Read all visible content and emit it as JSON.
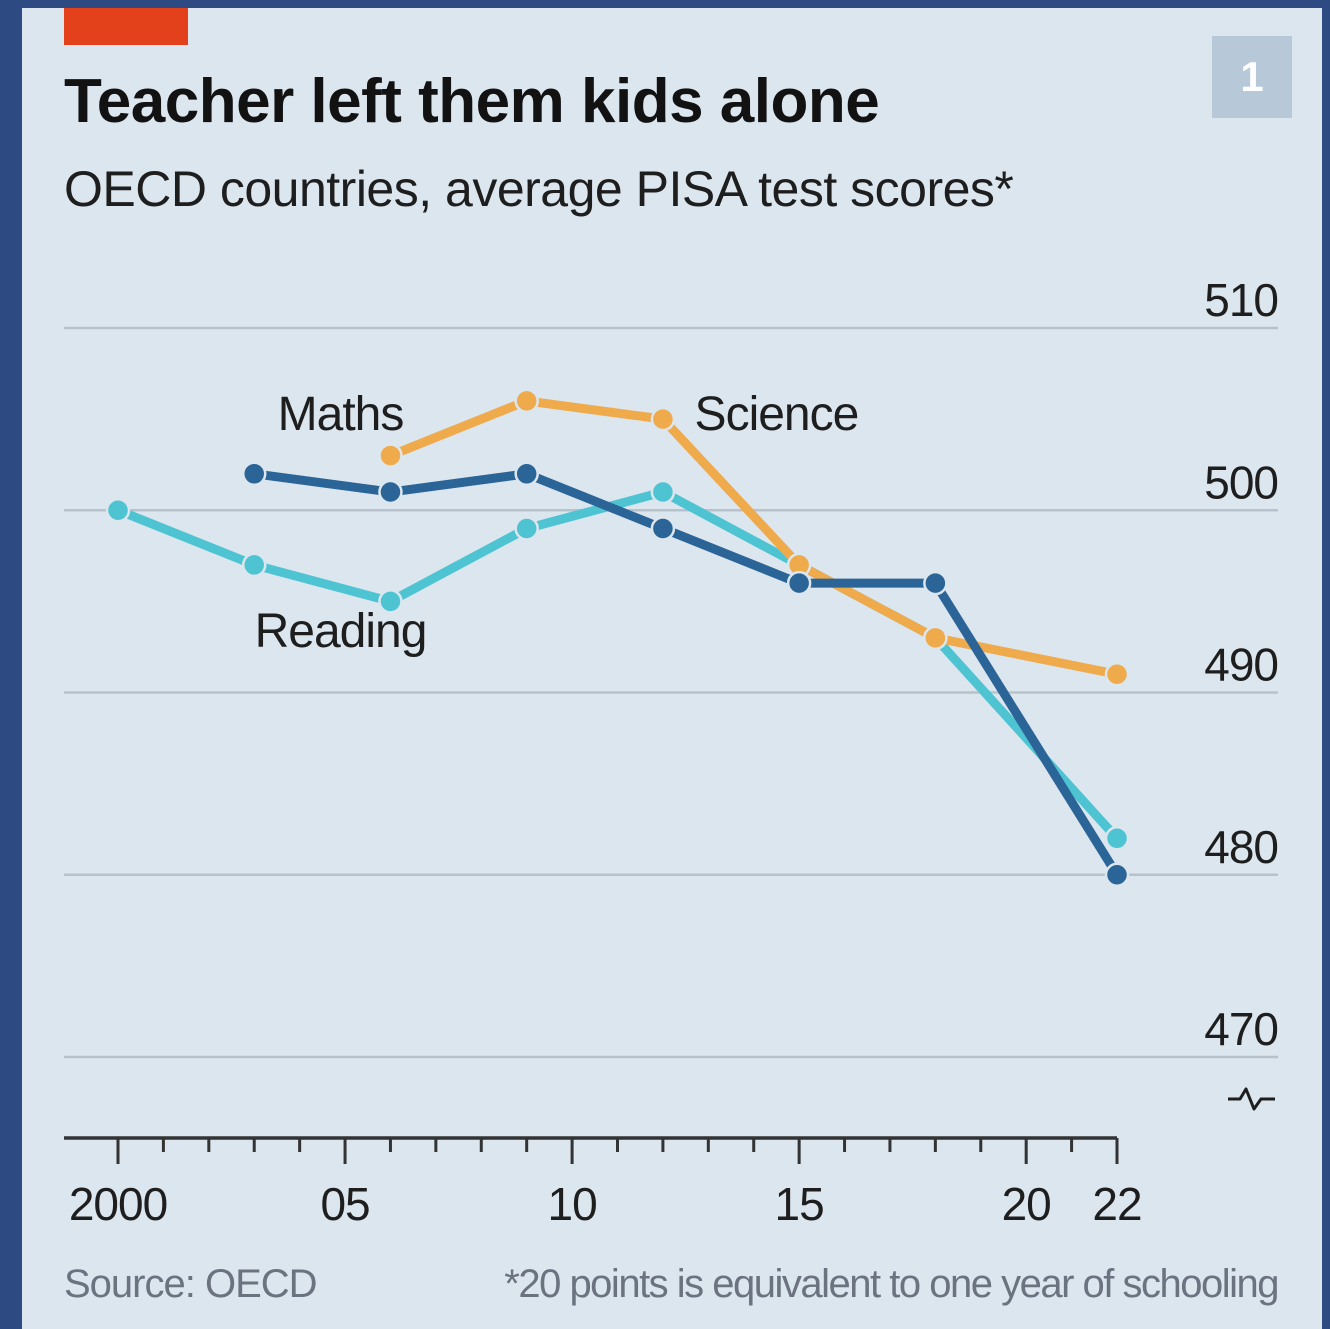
{
  "header": {
    "chart_number": "1",
    "title": "Teacher left them kids alone",
    "subtitle": "OECD countries, average PISA test scores*"
  },
  "footer": {
    "source": "Source: OECD",
    "footnote": "*20 points is equivalent to one year of schooling"
  },
  "colors": {
    "accent_red": "#e3411c",
    "maths": "#2b6496",
    "reading": "#4ec4d2",
    "science": "#efaa4c",
    "grid": "#b8c2cc",
    "axis": "#333333"
  },
  "chart_data": {
    "type": "line",
    "title": "Teacher left them kids alone",
    "subtitle": "OECD countries, average PISA test scores*",
    "xlim": [
      2000,
      2022
    ],
    "ylim": [
      470,
      510
    ],
    "y_axis_side": "right",
    "y_axis_break": true,
    "grid": "horizontal",
    "x_ticks": [
      {
        "value": 2000,
        "label": "2000"
      },
      {
        "value": 2005,
        "label": "05"
      },
      {
        "value": 2010,
        "label": "10"
      },
      {
        "value": 2015,
        "label": "15"
      },
      {
        "value": 2020,
        "label": "20"
      },
      {
        "value": 2022,
        "label": "22"
      }
    ],
    "y_ticks": [
      {
        "value": 510,
        "label": "510"
      },
      {
        "value": 500,
        "label": "500"
      },
      {
        "value": 490,
        "label": "490"
      },
      {
        "value": 480,
        "label": "480"
      },
      {
        "value": 470,
        "label": "470"
      }
    ],
    "series": [
      {
        "name": "Reading",
        "color": "#4ec4d2",
        "label_anchor": [
          2004.9,
          492.5
        ],
        "points": [
          [
            2000,
            500
          ],
          [
            2003,
            497
          ],
          [
            2006,
            495
          ],
          [
            2009,
            499
          ],
          [
            2012,
            501
          ],
          [
            2015,
            497
          ],
          [
            2018,
            493
          ],
          [
            2022,
            482
          ]
        ]
      },
      {
        "name": "Science",
        "color": "#efaa4c",
        "label_anchor": [
          2014.5,
          504.4
        ],
        "points": [
          [
            2006,
            503
          ],
          [
            2009,
            506
          ],
          [
            2012,
            505
          ],
          [
            2015,
            497
          ],
          [
            2018,
            493
          ],
          [
            2022,
            491
          ]
        ]
      },
      {
        "name": "Maths",
        "color": "#2b6496",
        "label_anchor": [
          2004.9,
          504.4
        ],
        "points": [
          [
            2003,
            502
          ],
          [
            2006,
            501
          ],
          [
            2009,
            502
          ],
          [
            2012,
            499
          ],
          [
            2015,
            496
          ],
          [
            2018,
            496
          ],
          [
            2022,
            480
          ]
        ]
      }
    ]
  }
}
